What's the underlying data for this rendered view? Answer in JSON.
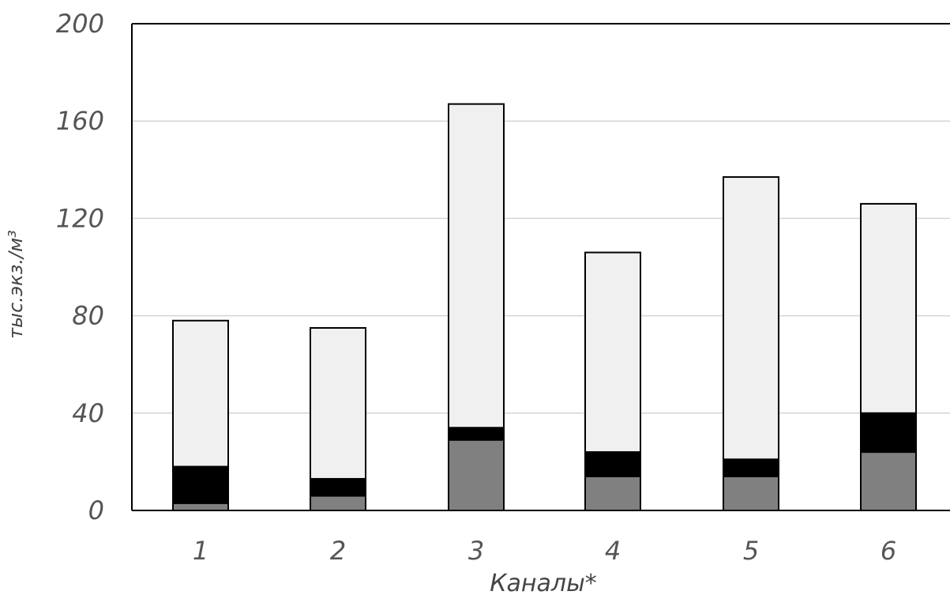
{
  "chart_data": {
    "type": "bar",
    "stacked": true,
    "title": "",
    "xlabel": "Каналы*",
    "ylabel": "тыс.экз./м³",
    "ylim": [
      0,
      200
    ],
    "yticks": [
      0,
      40,
      80,
      120,
      160,
      200
    ],
    "grid": true,
    "legend": "none",
    "categories": [
      "1",
      "2",
      "3",
      "4",
      "5",
      "6"
    ],
    "series": [
      {
        "values": [
          3,
          6,
          29,
          14,
          14,
          24
        ],
        "color": "#808080"
      },
      {
        "values": [
          15,
          7,
          5,
          10,
          7,
          16
        ],
        "color": "#000000"
      },
      {
        "values": [
          60,
          62,
          133,
          82,
          116,
          86
        ],
        "color": "#f0f0f0"
      }
    ]
  }
}
